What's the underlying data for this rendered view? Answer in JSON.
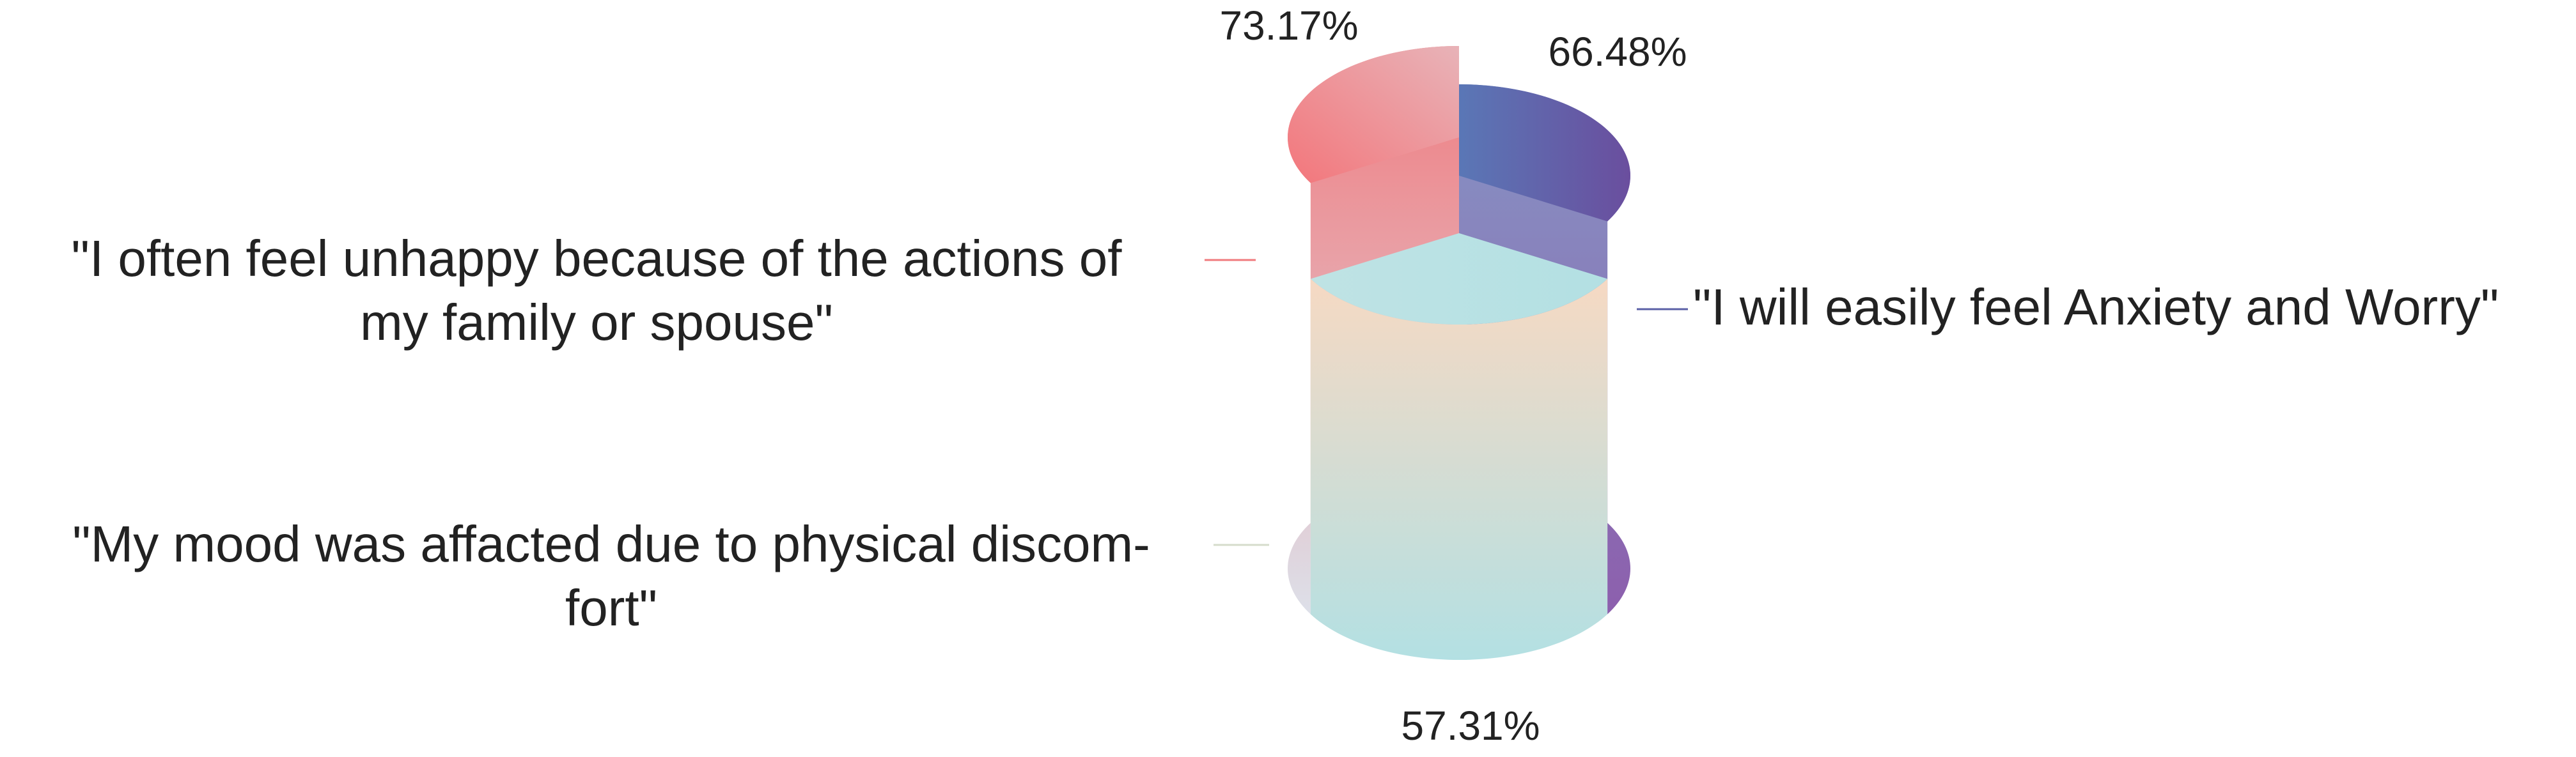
{
  "chart_data": {
    "type": "pie",
    "title": "",
    "grid": false,
    "legend": "none",
    "unit": "%",
    "series": [
      {
        "label_lines": [
          "\"I will easily feel Anxiety and Worry\""
        ],
        "value": 66.48,
        "value_label": "66.48%",
        "color_top": "#5a77b6",
        "color_bottom": "#8c5fad"
      },
      {
        "label_lines": [
          "\"My mood was affacted due to physical discom-",
          "fort\""
        ],
        "value": 57.31,
        "value_label": "57.31%",
        "color_top": "#f3d9c2",
        "color_bottom": "#b3e0e3"
      },
      {
        "label_lines": [
          "\"I often feel unhappy because of the actions of",
          "my family or spouse\""
        ],
        "value": 73.17,
        "value_label": "73.17%",
        "color_top": "#f07a7e",
        "color_bottom": "#dedfe8"
      }
    ]
  }
}
